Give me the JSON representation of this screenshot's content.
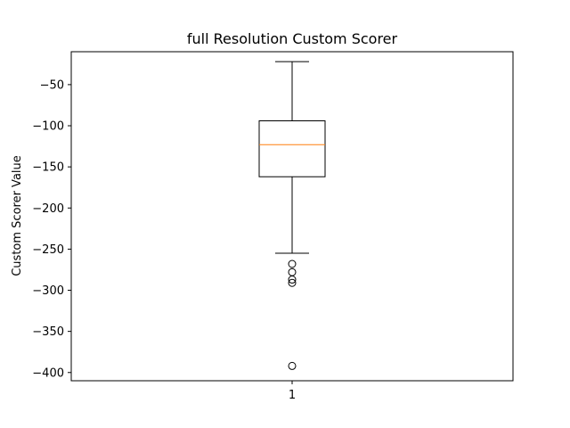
{
  "chart_data": {
    "type": "boxplot",
    "title": "full Resolution Custom Scorer",
    "xlabel": "",
    "ylabel": "Custom Scorer Value",
    "categories": [
      "1"
    ],
    "ylim": [
      -410,
      -10
    ],
    "yticks": [
      -50,
      -100,
      -150,
      -200,
      -250,
      -300,
      -350,
      -400
    ],
    "ytick_labels": [
      "−50",
      "−100",
      "−150",
      "−200",
      "−250",
      "−300",
      "−350",
      "−400"
    ],
    "boxes": [
      {
        "label": "1",
        "whisker_high": -22,
        "q3": -94,
        "median": -123,
        "q1": -162,
        "whisker_low": -255,
        "outliers": [
          -268,
          -278,
          -287,
          -291,
          -392
        ]
      }
    ],
    "grid": false,
    "colors": {
      "box": "#000000",
      "median": "#ff7f0e",
      "whisker": "#000000",
      "outlier": "#000000"
    }
  }
}
